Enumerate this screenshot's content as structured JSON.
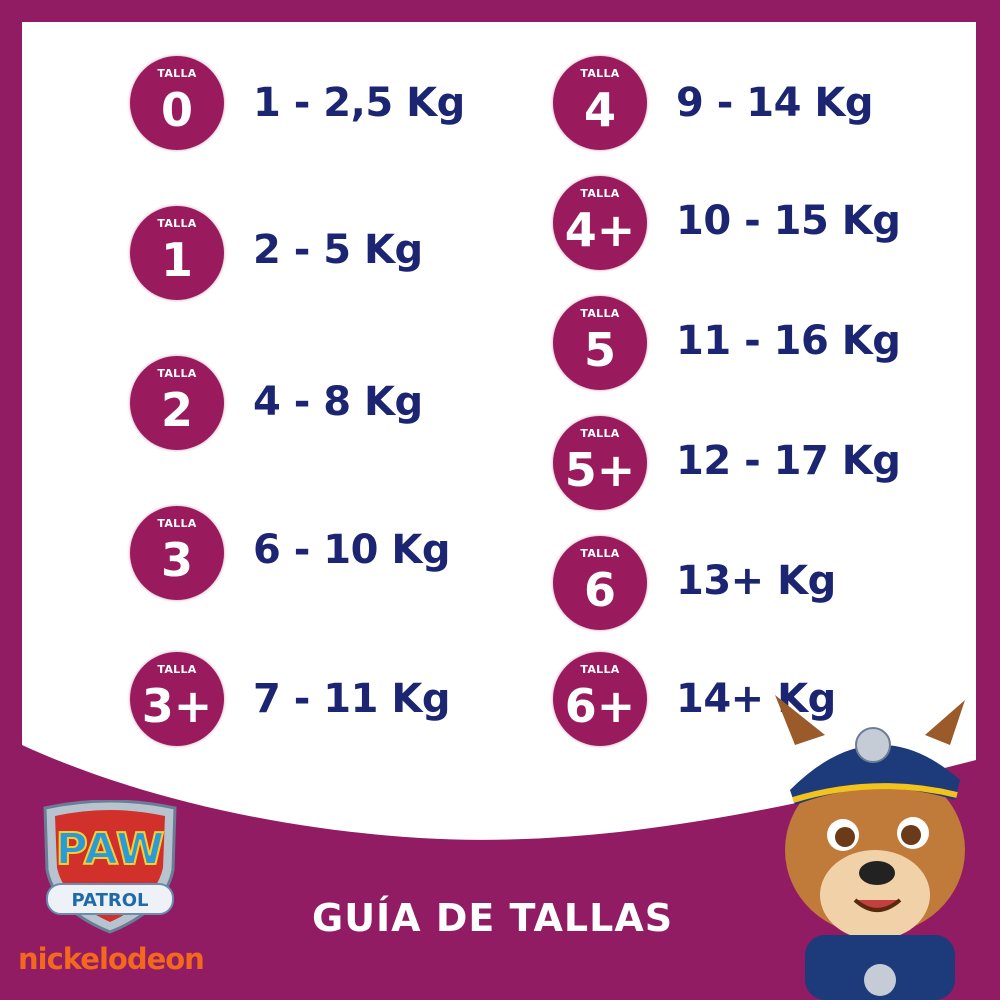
{
  "title": "GUÍA DE TALLAS",
  "size_label": "TALLA",
  "left_column": [
    {
      "size": "0",
      "range": "1 - 2,5 Kg"
    },
    {
      "size": "1",
      "range": "2 - 5 Kg"
    },
    {
      "size": "2",
      "range": "4 - 8 Kg"
    },
    {
      "size": "3",
      "range": "6 - 10 Kg"
    },
    {
      "size": "3+",
      "range": "7 - 11 Kg"
    }
  ],
  "right_column": [
    {
      "size": "4",
      "range": "9 - 14 Kg"
    },
    {
      "size": "4+",
      "range": "10 - 15 Kg"
    },
    {
      "size": "5",
      "range": "11 - 16 Kg"
    },
    {
      "size": "5+",
      "range": "12 - 17 Kg"
    },
    {
      "size": "6",
      "range": "13+ Kg"
    },
    {
      "size": "6+",
      "range": "14+ Kg"
    }
  ],
  "logo": {
    "line1": "PAW",
    "line2": "PATROL"
  },
  "brand": "nickelodeon",
  "colors": {
    "frame": "#911c63",
    "badge": "#9a1a5e",
    "text": "#1b2571",
    "brand": "#f2691d"
  }
}
